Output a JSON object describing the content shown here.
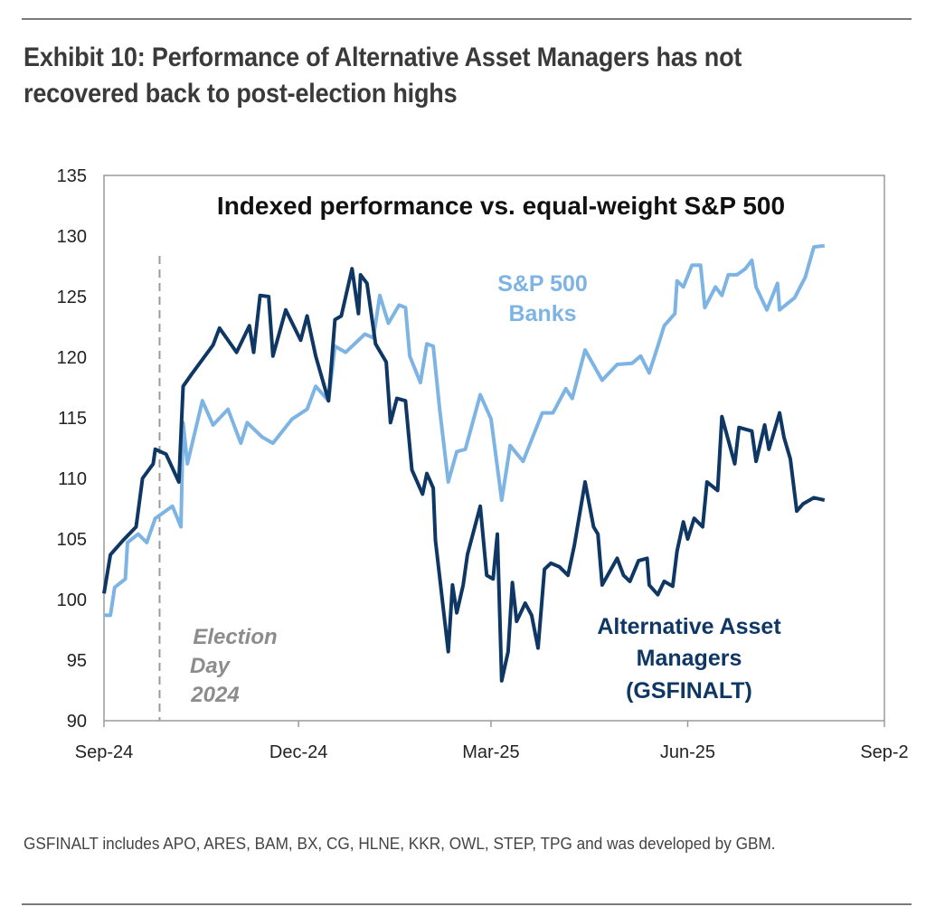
{
  "exhibit_title": "Exhibit 10: Performance of Alternative Asset Managers has not recovered back to post-election highs",
  "footnote": "GSFINALT includes APO, ARES, BAM, BX, CG, HLNE, KKR, OWL, STEP, TPG and was developed by GBM.",
  "chart_data": {
    "type": "line",
    "title": "Indexed performance vs. equal-weight S&P 500",
    "xlabel": "",
    "ylabel": "",
    "ylim": [
      90,
      135
    ],
    "y_ticks": [
      90,
      95,
      100,
      105,
      110,
      115,
      120,
      125,
      130,
      135
    ],
    "xlim": [
      "2024-09-01",
      "2025-09-01"
    ],
    "x_ticks": [
      {
        "date": "2024-09-01",
        "label": "Sep-24"
      },
      {
        "date": "2024-12-01",
        "label": "Dec-24"
      },
      {
        "date": "2025-03-01",
        "label": "Mar-25"
      },
      {
        "date": "2025-06-01",
        "label": "Jun-25"
      },
      {
        "date": "2025-09-01",
        "label": "Sep-2"
      }
    ],
    "grid": false,
    "legend": "none (inline labels)",
    "annotation": {
      "date": "2024-09-27",
      "style": "dashed vertical line",
      "label_lines": [
        "Election",
        "Day",
        "2024"
      ],
      "color": "#9a9a9a"
    },
    "series": [
      {
        "name": "Alternative Asset Managers (GSFINALT)",
        "label_lines": [
          "Alternative Asset",
          "Managers",
          "(GSFINALT)"
        ],
        "color": "#0f3764",
        "points": [
          [
            "2024-09-01",
            100.5
          ],
          [
            "2024-09-04",
            103.7
          ],
          [
            "2024-09-10",
            104.9
          ],
          [
            "2024-09-16",
            106
          ],
          [
            "2024-09-19",
            110
          ],
          [
            "2024-09-24",
            111.2
          ],
          [
            "2024-09-25",
            112.4
          ],
          [
            "2024-09-30",
            112
          ],
          [
            "2024-10-06",
            109.7
          ],
          [
            "2024-10-08",
            117.6
          ],
          [
            "2024-10-12",
            118.6
          ],
          [
            "2024-10-22",
            121
          ],
          [
            "2024-10-25",
            122.4
          ],
          [
            "2024-11-02",
            120.4
          ],
          [
            "2024-11-08",
            122.6
          ],
          [
            "2024-11-10",
            120.4
          ],
          [
            "2024-11-13",
            125.1
          ],
          [
            "2024-11-17",
            125
          ],
          [
            "2024-11-19",
            120.1
          ],
          [
            "2024-11-25",
            123.9
          ],
          [
            "2024-12-02",
            121.4
          ],
          [
            "2024-12-05",
            123.4
          ],
          [
            "2024-12-09",
            120.1
          ],
          [
            "2024-12-15",
            116.4
          ],
          [
            "2024-12-18",
            123.1
          ],
          [
            "2024-12-21",
            123.4
          ],
          [
            "2024-12-26",
            127.3
          ],
          [
            "2024-12-29",
            123.6
          ],
          [
            "2024-12-30",
            126.8
          ],
          [
            "2025-01-02",
            126.1
          ],
          [
            "2025-01-06",
            121.1
          ],
          [
            "2025-01-11",
            119.6
          ],
          [
            "2025-01-13",
            114.6
          ],
          [
            "2025-01-16",
            116.6
          ],
          [
            "2025-01-20",
            116.4
          ],
          [
            "2025-01-23",
            110.7
          ],
          [
            "2025-01-28",
            108.7
          ],
          [
            "2025-01-30",
            110.4
          ],
          [
            "2025-02-02",
            109.2
          ],
          [
            "2025-02-03",
            104.9
          ],
          [
            "2025-02-09",
            95.7
          ],
          [
            "2025-02-11",
            101.2
          ],
          [
            "2025-02-13",
            98.9
          ],
          [
            "2025-02-16",
            101.2
          ],
          [
            "2025-02-18",
            103.7
          ],
          [
            "2025-02-24",
            107.7
          ],
          [
            "2025-02-27",
            102
          ],
          [
            "2025-03-02",
            101.7
          ],
          [
            "2025-03-04",
            105.4
          ],
          [
            "2025-03-06",
            93.3
          ],
          [
            "2025-03-09",
            95.7
          ],
          [
            "2025-03-11",
            101.4
          ],
          [
            "2025-03-13",
            98.2
          ],
          [
            "2025-03-17",
            99.7
          ],
          [
            "2025-03-20",
            98.7
          ],
          [
            "2025-03-23",
            96
          ],
          [
            "2025-03-26",
            102.5
          ],
          [
            "2025-03-29",
            103
          ],
          [
            "2025-04-02",
            102.7
          ],
          [
            "2025-04-06",
            102
          ],
          [
            "2025-04-09",
            104.5
          ],
          [
            "2025-04-14",
            109.7
          ],
          [
            "2025-04-18",
            106
          ],
          [
            "2025-04-20",
            105.4
          ],
          [
            "2025-04-22",
            101.2
          ],
          [
            "2025-04-29",
            103.4
          ],
          [
            "2025-05-02",
            102
          ],
          [
            "2025-05-05",
            101.5
          ],
          [
            "2025-05-09",
            103.2
          ],
          [
            "2025-05-13",
            103.4
          ],
          [
            "2025-05-14",
            101.2
          ],
          [
            "2025-05-18",
            100.4
          ],
          [
            "2025-05-21",
            101.5
          ],
          [
            "2025-05-25",
            101.1
          ],
          [
            "2025-05-27",
            104
          ],
          [
            "2025-05-30",
            106.4
          ],
          [
            "2025-06-01",
            105
          ],
          [
            "2025-06-04",
            106.7
          ],
          [
            "2025-06-08",
            106
          ],
          [
            "2025-06-10",
            109.7
          ],
          [
            "2025-06-15",
            109
          ],
          [
            "2025-06-17",
            115.1
          ],
          [
            "2025-06-23",
            111.2
          ],
          [
            "2025-06-25",
            114.2
          ],
          [
            "2025-07-01",
            113.9
          ],
          [
            "2025-07-03",
            111.4
          ],
          [
            "2025-07-07",
            114.4
          ],
          [
            "2025-07-09",
            112.4
          ],
          [
            "2025-07-14",
            115.4
          ],
          [
            "2025-07-16",
            113.4
          ],
          [
            "2025-07-19",
            111.6
          ],
          [
            "2025-07-22",
            107.3
          ],
          [
            "2025-07-25",
            107.9
          ],
          [
            "2025-07-30",
            108.4
          ],
          [
            "2025-08-04",
            108.2
          ]
        ]
      },
      {
        "name": "S&P 500 Banks",
        "label_lines": [
          "S&P 500",
          "Banks"
        ],
        "color": "#7db4e4",
        "points": [
          [
            "2024-09-01",
            98.7
          ],
          [
            "2024-09-04",
            98.7
          ],
          [
            "2024-09-06",
            101
          ],
          [
            "2024-09-11",
            101.7
          ],
          [
            "2024-09-12",
            104.7
          ],
          [
            "2024-09-17",
            105.4
          ],
          [
            "2024-09-21",
            104.7
          ],
          [
            "2024-09-25",
            106.7
          ],
          [
            "2024-10-03",
            107.7
          ],
          [
            "2024-10-07",
            106
          ],
          [
            "2024-10-08",
            114.6
          ],
          [
            "2024-10-10",
            111.2
          ],
          [
            "2024-10-17",
            116.4
          ],
          [
            "2024-10-22",
            114.4
          ],
          [
            "2024-10-29",
            115.7
          ],
          [
            "2024-11-04",
            112.9
          ],
          [
            "2024-11-07",
            114.6
          ],
          [
            "2024-11-14",
            113.4
          ],
          [
            "2024-11-19",
            112.9
          ],
          [
            "2024-11-28",
            114.9
          ],
          [
            "2024-12-05",
            115.7
          ],
          [
            "2024-12-09",
            117.6
          ],
          [
            "2024-12-15",
            116.4
          ],
          [
            "2024-12-18",
            120.9
          ],
          [
            "2024-12-23",
            120.4
          ],
          [
            "2025-01-01",
            121.9
          ],
          [
            "2025-01-05",
            121.6
          ],
          [
            "2025-01-08",
            125.1
          ],
          [
            "2025-01-12",
            122.8
          ],
          [
            "2025-01-17",
            124.3
          ],
          [
            "2025-01-20",
            124.1
          ],
          [
            "2025-01-22",
            120.1
          ],
          [
            "2025-01-27",
            117.9
          ],
          [
            "2025-01-30",
            121.1
          ],
          [
            "2025-02-02",
            120.9
          ],
          [
            "2025-02-05",
            115.7
          ],
          [
            "2025-02-09",
            109.7
          ],
          [
            "2025-02-13",
            112.2
          ],
          [
            "2025-02-17",
            112.4
          ],
          [
            "2025-02-24",
            116.9
          ],
          [
            "2025-03-01",
            114.9
          ],
          [
            "2025-03-06",
            108.2
          ],
          [
            "2025-03-10",
            112.7
          ],
          [
            "2025-03-16",
            111.4
          ],
          [
            "2025-03-25",
            115.4
          ],
          [
            "2025-03-30",
            115.4
          ],
          [
            "2025-04-05",
            117.4
          ],
          [
            "2025-04-08",
            116.6
          ],
          [
            "2025-04-14",
            120.6
          ],
          [
            "2025-04-22",
            118.1
          ],
          [
            "2025-04-29",
            119.4
          ],
          [
            "2025-05-06",
            119.5
          ],
          [
            "2025-05-10",
            120.1
          ],
          [
            "2025-05-14",
            118.7
          ],
          [
            "2025-05-18",
            120.9
          ],
          [
            "2025-05-21",
            122.6
          ],
          [
            "2025-05-26",
            123.6
          ],
          [
            "2025-05-27",
            126.3
          ],
          [
            "2025-05-30",
            125.8
          ],
          [
            "2025-06-03",
            127.6
          ],
          [
            "2025-06-07",
            127.6
          ],
          [
            "2025-06-09",
            124.1
          ],
          [
            "2025-06-14",
            125.8
          ],
          [
            "2025-06-17",
            125.1
          ],
          [
            "2025-06-20",
            126.8
          ],
          [
            "2025-06-24",
            126.8
          ],
          [
            "2025-06-28",
            127.3
          ],
          [
            "2025-07-01",
            128
          ],
          [
            "2025-07-03",
            125.8
          ],
          [
            "2025-07-08",
            123.9
          ],
          [
            "2025-07-13",
            126.1
          ],
          [
            "2025-07-14",
            123.9
          ],
          [
            "2025-07-21",
            124.9
          ],
          [
            "2025-07-26",
            126.6
          ],
          [
            "2025-07-30",
            129.1
          ],
          [
            "2025-08-04",
            129.2
          ]
        ]
      }
    ]
  }
}
